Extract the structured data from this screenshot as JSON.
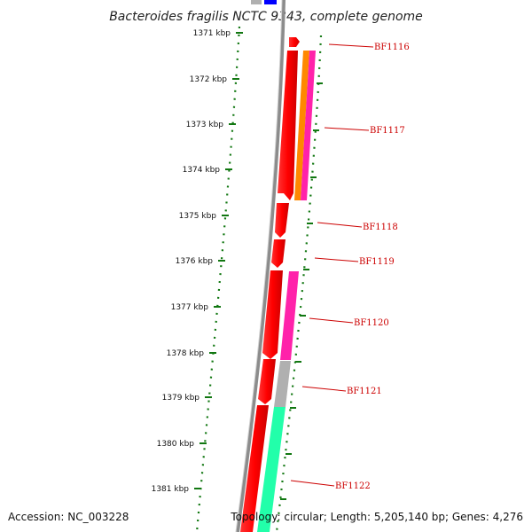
{
  "title": "Bacteroides fragilis NCTC 9343, complete genome",
  "ticks": [
    "1371 kbp",
    "1372 kbp",
    "1373 kbp",
    "1374 kbp",
    "1375 kbp",
    "1376 kbp",
    "1377 kbp",
    "1378 kbp",
    "1379 kbp",
    "1380 kbp",
    "1381 kbp"
  ],
  "genes": [
    "BF1116",
    "BF1117",
    "BF1118",
    "BF1119",
    "BF1120",
    "BF1121",
    "BF1122"
  ],
  "footer": {
    "accession": "Accession: NC_003228",
    "topology": "Topology: circular; Length: 5,205,140 bp; Genes: 4,276"
  },
  "colors": {
    "forward_gene": "#ff0000",
    "orange_feature": "#ff8800",
    "magenta_feature": "#ff22aa",
    "grey_feature": "#b0b0b0",
    "green_feature": "#22ffaa",
    "blue_feature": "#0000ff",
    "tick_green": "#117711",
    "label_red": "#cc0000"
  }
}
